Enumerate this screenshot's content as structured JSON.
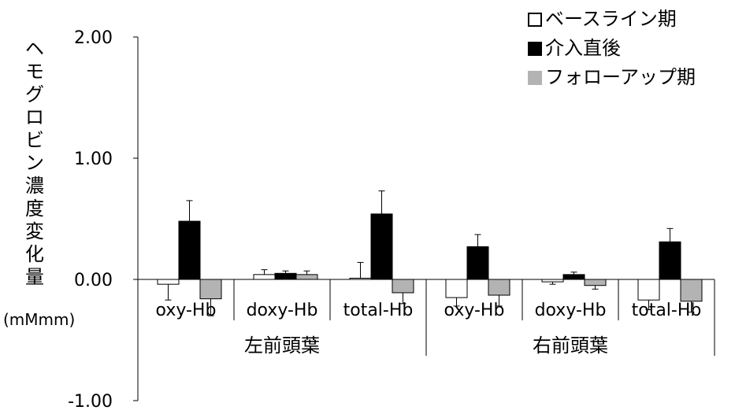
{
  "chart_data": {
    "type": "bar",
    "ylabel": "ヘモグロビン濃度変化量",
    "ylabel_unit": "(mMmm)",
    "ylim": [
      -1.0,
      2.0
    ],
    "yticks": [
      "2.00",
      "1.00",
      "0.00",
      "-1.00"
    ],
    "ytick_values": [
      2.0,
      1.0,
      0.0,
      -1.0
    ],
    "grid": false,
    "legend_position": "top-right",
    "groups": [
      "左前頭葉",
      "右前頭葉"
    ],
    "categories": [
      "oxy-Hb",
      "doxy-Hb",
      "total-Hb",
      "oxy-Hb",
      "doxy-Hb",
      "total-Hb"
    ],
    "series": [
      {
        "name": "ベースライン期",
        "color": "#ffffff",
        "values": [
          -0.04,
          0.04,
          0.01,
          -0.15,
          -0.02,
          -0.17
        ],
        "errors": [
          0.13,
          0.04,
          0.13,
          0.07,
          0.02,
          0.08
        ]
      },
      {
        "name": "介入直後",
        "color": "#000000",
        "values": [
          0.48,
          0.05,
          0.54,
          0.27,
          0.04,
          0.31
        ],
        "errors": [
          0.17,
          0.02,
          0.19,
          0.1,
          0.02,
          0.11
        ]
      },
      {
        "name": "フォローアップ期",
        "color": "#b3b3b3",
        "values": [
          -0.16,
          0.04,
          -0.11,
          -0.13,
          -0.05,
          -0.18
        ],
        "errors": [
          0.14,
          0.03,
          0.09,
          0.09,
          0.03,
          0.09
        ]
      }
    ]
  }
}
